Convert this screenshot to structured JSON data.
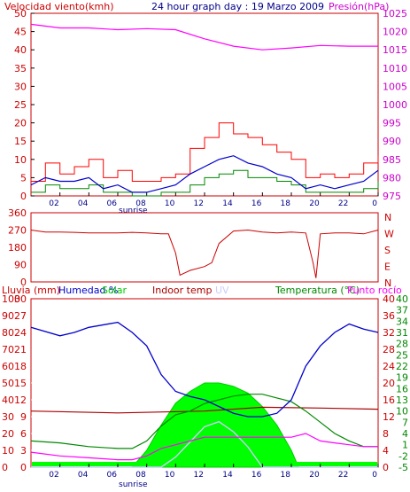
{
  "chart_data": [
    {
      "type": "line",
      "title": "24 hour graph day : 19 Marzo 2009",
      "left_axis_label": "Velocidad viento(kmh)",
      "right_axis_label": "Presión(hPa)",
      "left_ylim": [
        0,
        50
      ],
      "left_ticks": [
        "0",
        "5",
        "10",
        "15",
        "20",
        "25",
        "30",
        "35",
        "40",
        "45",
        "50"
      ],
      "right_ylim": [
        975,
        1025
      ],
      "right_ticks": [
        "975",
        "980",
        "985",
        "990",
        "995",
        "1000",
        "1005",
        "1010",
        "1015",
        "1020",
        "1025"
      ],
      "x_ticks": [
        "02",
        "04",
        "06",
        "08",
        "10",
        "12",
        "14",
        "16",
        "18",
        "20",
        "22",
        "0"
      ],
      "x_marker": "sunrise",
      "colors": {
        "gust": "#ff0000",
        "wind": "#0000cc",
        "wind_min": "#008800",
        "pressure": "#ff00ff",
        "axis": "#000000",
        "frame": "#cc0000"
      },
      "series": [
        {
          "name": "Presión(hPa)",
          "x": [
            0,
            2,
            4,
            6,
            8,
            10,
            12,
            14,
            16,
            18,
            20,
            22,
            24
          ],
          "values": [
            1022,
            1021,
            1021,
            1020.5,
            1020.8,
            1020.5,
            1018,
            1016,
            1015,
            1015.5,
            1016.2,
            1016,
            1016
          ]
        }
      ],
      "wind_gust_x": [
        0,
        1,
        2,
        3,
        4,
        5,
        6,
        7,
        8,
        9,
        10,
        11,
        12,
        13,
        14,
        15,
        16,
        17,
        18,
        19,
        20,
        21,
        22,
        23,
        24
      ],
      "wind_gust": [
        4,
        9,
        6,
        8,
        10,
        5,
        7,
        4,
        4,
        5,
        6,
        13,
        16,
        20,
        17,
        16,
        14,
        12,
        10,
        5,
        6,
        5,
        6,
        9,
        11
      ],
      "wind_avg": [
        3,
        5,
        4,
        4,
        5,
        2,
        3,
        1,
        1,
        2,
        3,
        6,
        8,
        10,
        11,
        9,
        8,
        6,
        5,
        2,
        3,
        2,
        3,
        4,
        7
      ],
      "wind_low": [
        1,
        3,
        2,
        2,
        3,
        1,
        1,
        0,
        0,
        1,
        1,
        3,
        5,
        6,
        7,
        5,
        5,
        4,
        3,
        1,
        1,
        1,
        1,
        2,
        4
      ]
    },
    {
      "type": "line",
      "title": "",
      "left_ylim": [
        0,
        360
      ],
      "left_ticks": [
        "0",
        "90",
        "180",
        "270",
        "360"
      ],
      "right_labels": [
        "N",
        "W",
        "S",
        "E",
        "N"
      ],
      "x_ticks": [],
      "colors": {
        "direction": "#cc0000",
        "frame": "#cc0000"
      },
      "series": [
        {
          "name": "",
          "x": [
            0,
            1,
            2,
            3,
            4,
            5,
            6,
            7,
            8,
            9,
            9.5,
            10,
            10.3,
            11,
            12,
            12.5,
            13,
            14,
            15,
            16,
            17,
            18,
            19,
            19.5,
            19.7,
            20,
            21,
            22,
            23,
            24
          ],
          "values": [
            270,
            260,
            260,
            258,
            255,
            255,
            255,
            258,
            255,
            250,
            250,
            150,
            35,
            60,
            80,
            100,
            200,
            265,
            270,
            260,
            255,
            260,
            255,
            100,
            20,
            250,
            255,
            255,
            250,
            270
          ]
        }
      ]
    },
    {
      "type": "line",
      "title": "",
      "left_labels": {
        "rain": "Lluvia (mm)",
        "humidity": "Humedad %",
        "solar": "Solar",
        "indoor": "Indoor temp",
        "uv": "UV"
      },
      "right_labels": {
        "temperature": "Temperatura (°C)",
        "dewpoint": "Punto rocío"
      },
      "rain_ticks": [
        "0",
        "3",
        "6",
        "9",
        "12",
        "15",
        "18",
        "21",
        "24",
        "27",
        "30"
      ],
      "humidity_ticks": [
        "0",
        "10",
        "20",
        "30",
        "40",
        "50",
        "60",
        "70",
        "80",
        "90",
        "100"
      ],
      "temp_ticks_outer": [
        "0",
        "4",
        "8",
        "12",
        "16",
        "20",
        "24",
        "28",
        "32",
        "36",
        "40"
      ],
      "temp_ticks_inner": [
        "-5",
        "-2",
        "1",
        "4",
        "7",
        "10",
        "13",
        "16",
        "19",
        "22",
        "25",
        "28",
        "31",
        "34",
        "37",
        "40"
      ],
      "x_ticks": [
        "02",
        "04",
        "06",
        "08",
        "10",
        "12",
        "14",
        "16",
        "18",
        "20",
        "22",
        "0"
      ],
      "x_marker": "sunrise",
      "colors": {
        "humidity": "#0000cc",
        "temperature": "#008800",
        "dewpoint": "#ff00ff",
        "indoor": "#aa0000",
        "solar": "#00ff00",
        "uv": "#ccccff",
        "rain": "#ff0000",
        "frame": "#cc0000"
      },
      "humidity": {
        "x": [
          0,
          2,
          3,
          4,
          6,
          7,
          8,
          9,
          10,
          11,
          12,
          13,
          14,
          15,
          16,
          17,
          18,
          19,
          20,
          21,
          22,
          23,
          24
        ],
        "values": [
          83,
          78,
          80,
          83,
          86,
          80,
          72,
          55,
          45,
          42,
          40,
          36,
          32,
          30,
          30,
          32,
          40,
          60,
          72,
          80,
          85,
          82,
          80
        ]
      },
      "temperature": {
        "x": [
          0,
          2,
          4,
          6,
          7,
          8,
          9,
          10,
          11,
          12,
          13,
          14,
          15,
          16,
          17,
          18,
          19,
          20,
          21,
          22,
          23,
          24
        ],
        "values": [
          2,
          1.5,
          0.5,
          0,
          0,
          2,
          6,
          9,
          10,
          12,
          13,
          14,
          14.5,
          14.5,
          13.5,
          12.5,
          10,
          7,
          4,
          2,
          0.5,
          0.5
        ]
      },
      "dewpoint": {
        "x": [
          0,
          2,
          4,
          6,
          7,
          8,
          9,
          10,
          11,
          12,
          13,
          14,
          15,
          16,
          17,
          18,
          19,
          20,
          21,
          22,
          23,
          24
        ],
        "values": [
          -1,
          -2,
          -2.5,
          -3,
          -3,
          -2,
          0,
          1,
          2,
          3,
          3,
          3,
          3,
          3,
          3,
          3,
          4,
          2,
          1.5,
          1,
          0.5,
          0.5
        ]
      },
      "indoor_temp": {
        "x": [
          0,
          6,
          12,
          16,
          20,
          24
        ],
        "values": [
          10,
          9.5,
          10,
          11,
          10.8,
          10.5
        ]
      },
      "solar": {
        "x": [
          0,
          7,
          8,
          9,
          10,
          11,
          12,
          13,
          14,
          15,
          16,
          17,
          18,
          18.5,
          24
        ],
        "values": [
          0,
          0,
          10,
          25,
          38,
          45,
          50,
          50,
          48,
          44,
          36,
          25,
          10,
          0,
          0
        ]
      },
      "uv": {
        "x": [
          0,
          9,
          10,
          11,
          12,
          13,
          14,
          15,
          16,
          24
        ],
        "values": [
          0,
          0,
          2,
          5,
          8,
          9,
          7,
          4,
          0,
          0
        ]
      },
      "rain": {
        "x": [
          0,
          24
        ],
        "values": [
          0,
          0
        ]
      }
    }
  ]
}
